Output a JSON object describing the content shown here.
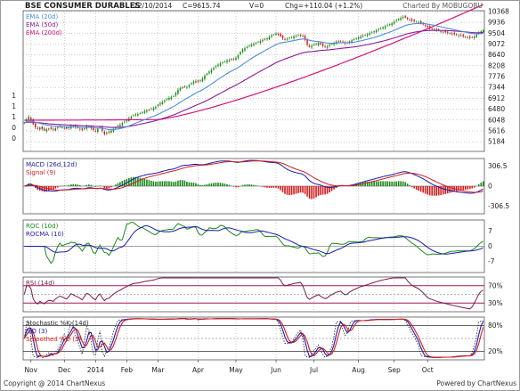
{
  "header": {
    "title": "BSE CONSUMER DURABLES",
    "date": "22/10/2014",
    "close": "C=9615.74",
    "volume": "V=0",
    "change": "Chg=+110.04 (+1.2%)",
    "credit": "Charted By MOBUGOBU"
  },
  "footer": {
    "copyright": "Copyright @ 2014 ChartNexus",
    "powered": "Powered by ChartNexus"
  },
  "colors": {
    "plot_background": "#ffffff",
    "grid": "#9a9a9a",
    "candle_up": "#1a8a1a",
    "candle_down": "#d41c1c",
    "ema20": "#4a8fd8",
    "ema50": "#8a1a9a",
    "ema200": "#d4147a",
    "macd": "#1a1aaa",
    "signal": "#d41c1c",
    "roc": "#1a8a1a",
    "rocma": "#1a1aaa",
    "rsi": "#7a1a4a",
    "rsi_band": "#a01a5a",
    "stoch_k": "#1a1aaa",
    "stoch_d": "#d41c1c"
  },
  "chart_data": [
    {
      "type": "line",
      "panel": "price",
      "title": "BSE CONSUMER DURABLES",
      "legend": [
        "EMA (20d)",
        "EMA (50d)",
        "EMA (200d)"
      ],
      "legend_position": "top-left",
      "ylim": [
        4800,
        10400
      ],
      "y_ticks": [
        10368,
        9936,
        9504,
        9072,
        8640,
        8208,
        7776,
        7344,
        6912,
        6480,
        6048,
        5616,
        5184
      ],
      "left_axis_labels": [
        "1",
        "1",
        "1",
        "0",
        "0"
      ],
      "x_ticks": [
        "Nov",
        "Dec",
        "2014",
        "Feb",
        "Mar",
        "Apr",
        "May",
        "Jun",
        "Jul",
        "Aug",
        "Sep",
        "Oct"
      ],
      "x_tick_index": [
        3,
        18,
        32,
        46,
        60,
        78,
        95,
        113,
        130,
        150,
        166,
        181
      ],
      "close": [
        5950,
        6080,
        6180,
        6060,
        5880,
        5760,
        5700,
        5750,
        5690,
        5640,
        5680,
        5710,
        5700,
        5670,
        5720,
        5750,
        5780,
        5760,
        5730,
        5700,
        5750,
        5820,
        5790,
        5760,
        5730,
        5700,
        5650,
        5720,
        5800,
        5780,
        5720,
        5650,
        5600,
        5700,
        5760,
        5620,
        5490,
        5550,
        5560,
        5630,
        5700,
        5760,
        5820,
        5860,
        5930,
        5990,
        6050,
        6120,
        6180,
        6240,
        6270,
        6290,
        6320,
        6360,
        6400,
        6430,
        6460,
        6490,
        6520,
        6570,
        6660,
        6720,
        6770,
        6830,
        6880,
        6930,
        6960,
        7000,
        7130,
        7250,
        7320,
        7350,
        7380,
        7360,
        7440,
        7520,
        7580,
        7600,
        7580,
        7620,
        7700,
        7820,
        7900,
        7980,
        8050,
        8120,
        8200,
        8250,
        8300,
        8340,
        8380,
        8420,
        8440,
        8460,
        8480,
        8520,
        8620,
        8760,
        8860,
        8900,
        8960,
        9020,
        9050,
        9080,
        9120,
        9160,
        9200,
        9240,
        9260,
        9300,
        9360,
        9420,
        9460,
        9500,
        9460,
        9380,
        9300,
        9260,
        9280,
        9320,
        9340,
        9380,
        9400,
        9420,
        9440,
        9380,
        9240,
        9040,
        8960,
        9000,
        9050,
        9080,
        9120,
        9060,
        9000,
        8960,
        8980,
        9040,
        9080,
        9120,
        9160,
        9180,
        9200,
        9140,
        9100,
        9120,
        9180,
        9220,
        9260,
        9300,
        9340,
        9380,
        9400,
        9440,
        9460,
        9500,
        9540,
        9580,
        9620,
        9660,
        9700,
        9740,
        9780,
        9820,
        9860,
        9900,
        9960,
        10020,
        10080,
        10120,
        10150,
        10130,
        10080,
        10040,
        10000,
        9980,
        9960,
        9940,
        9900,
        9860,
        9800,
        9740,
        9700,
        9680,
        9650,
        9620,
        9600,
        9580,
        9560,
        9540,
        9520,
        9500,
        9480,
        9460,
        9440,
        9420,
        9400,
        9380,
        9360,
        9340,
        9320,
        9340,
        9380,
        9440,
        9520,
        9580,
        9616
      ]
    },
    {
      "type": "bar",
      "panel": "macd",
      "legend": [
        "MACD (26d,12d)",
        "Signal (9)"
      ],
      "ylim": [
        -420,
        420
      ],
      "y_ticks": [
        306.5,
        0,
        -306.5
      ]
    },
    {
      "type": "line",
      "panel": "roc",
      "legend": [
        "ROC (10d)",
        "ROCMA (10)"
      ],
      "ylim": [
        -12,
        12
      ],
      "y_ticks": [
        7,
        0,
        -7
      ]
    },
    {
      "type": "line",
      "panel": "rsi",
      "legend": [
        "RSI (14d)"
      ],
      "ylim": [
        10,
        90
      ],
      "y_ticks": [
        "70%",
        "30%"
      ]
    },
    {
      "type": "line",
      "panel": "stochastic",
      "legend": [
        "Stochastic %K (14d)",
        "%D (3)",
        "Smoothed %D (3)"
      ],
      "ylim": [
        0,
        100
      ],
      "y_ticks": [
        "80%",
        "20%"
      ]
    }
  ]
}
